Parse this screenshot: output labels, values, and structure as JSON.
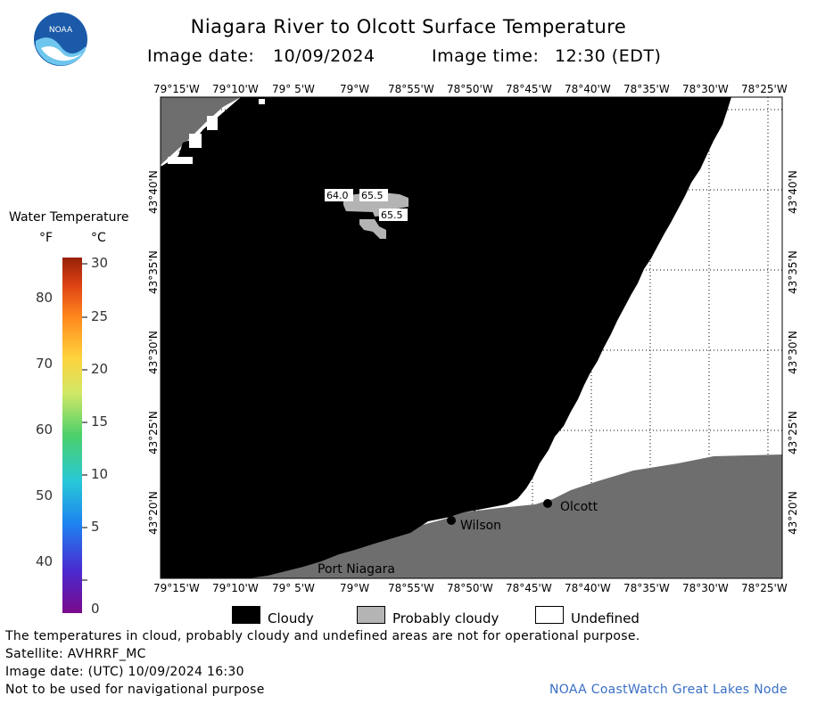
{
  "header": {
    "title": "Niagara River to Olcott Surface Temperature",
    "image_date_label": "Image date:",
    "image_date": "10/09/2024",
    "image_time_label": "Image time:",
    "image_time": "12:30 (EDT)",
    "logo_text": "NOAA"
  },
  "axes": {
    "lon_ticks": [
      "79°15'W",
      "79°10'W",
      "79° 5'W",
      "79°W",
      "78°55'W",
      "78°50'W",
      "78°45'W",
      "78°40'W",
      "78°35'W",
      "78°30'W",
      "78°25'W"
    ],
    "lat_ticks": [
      "43°40'N",
      "43°35'N",
      "43°30'N",
      "43°25'N",
      "43°20'N"
    ]
  },
  "colorbar": {
    "title": "Water Temperature",
    "unit_f": "°F",
    "unit_c": "°C",
    "f_labels": [
      "80",
      "70",
      "60",
      "50",
      "40"
    ],
    "c_labels": [
      "30",
      "25",
      "20",
      "15",
      "10",
      "5",
      "0"
    ]
  },
  "map": {
    "places": [
      "Olcott",
      "Wilson",
      "Port Niagara"
    ],
    "temp_labels": [
      "64.0",
      "65.5",
      "65.5"
    ]
  },
  "legend": {
    "items": [
      {
        "label": "Cloudy",
        "color": "#000000"
      },
      {
        "label": "Probably cloudy",
        "color": "#b4b4b4"
      },
      {
        "label": "Undefined",
        "color": "#ffffff"
      }
    ]
  },
  "footer": {
    "note": "The temperatures in cloud, probably cloudy and undefined areas are not for operational purpose.",
    "satellite": "Satellite: AVHRRF_MC",
    "utc_date": "Image date: (UTC) 10/09/2024  16:30",
    "nav_warning": "Not to be used for navigational purpose",
    "credit": "NOAA CoastWatch Great Lakes Node"
  },
  "colors": {
    "land": "#6e6e6e",
    "cloud": "#000000",
    "probably_cloudy": "#b4b4b4",
    "undefined": "#ffffff",
    "credit": "#3a6fc4"
  }
}
